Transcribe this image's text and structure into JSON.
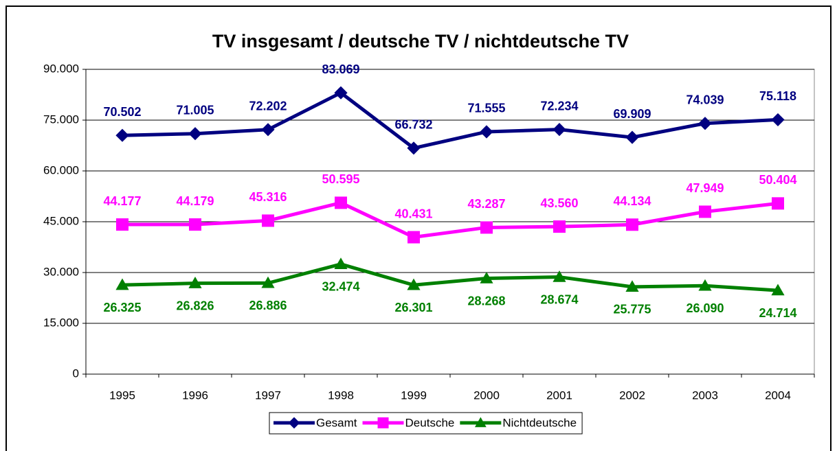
{
  "chart_data": {
    "type": "line",
    "title": "TV insgesamt / deutsche TV / nichtdeutsche TV",
    "categories": [
      "1995",
      "1996",
      "1997",
      "1998",
      "1999",
      "2000",
      "2001",
      "2002",
      "2003",
      "2004"
    ],
    "series": [
      {
        "name": "Gesamt",
        "color": "#000080",
        "marker": "diamond",
        "values": [
          70502,
          71005,
          72202,
          83069,
          66732,
          71555,
          72234,
          69909,
          74039,
          75118
        ],
        "value_labels": [
          "70.502",
          "71.005",
          "72.202",
          "83.069",
          "66.732",
          "71.555",
          "72.234",
          "69.909",
          "74.039",
          "75.118"
        ]
      },
      {
        "name": "Deutsche",
        "color": "#ff00ff",
        "marker": "square",
        "values": [
          44177,
          44179,
          45316,
          50595,
          40431,
          43287,
          43560,
          44134,
          47949,
          50404
        ],
        "value_labels": [
          "44.177",
          "44.179",
          "45.316",
          "50.595",
          "40.431",
          "43.287",
          "43.560",
          "44.134",
          "47.949",
          "50.404"
        ]
      },
      {
        "name": "Nichtdeutsche",
        "color": "#008000",
        "marker": "triangle",
        "values": [
          26325,
          26826,
          26886,
          32474,
          26301,
          28268,
          28674,
          25775,
          26090,
          24714
        ],
        "value_labels": [
          "26.325",
          "26.826",
          "26.886",
          "32.474",
          "26.301",
          "28.268",
          "28.674",
          "25.775",
          "26.090",
          "24.714"
        ]
      }
    ],
    "ylim": [
      0,
      90000
    ],
    "yticks": [
      0,
      {
        "value": 15000,
        "label": "15.000"
      },
      {
        "value": 30000,
        "label": "30.000"
      },
      {
        "value": 45000,
        "label": "45.000"
      },
      {
        "value": 60000,
        "label": "60.000"
      },
      {
        "value": 75000,
        "label": "75.000"
      },
      {
        "value": 90000,
        "label": "90.000"
      }
    ],
    "grid": true,
    "legend": "bottom"
  }
}
